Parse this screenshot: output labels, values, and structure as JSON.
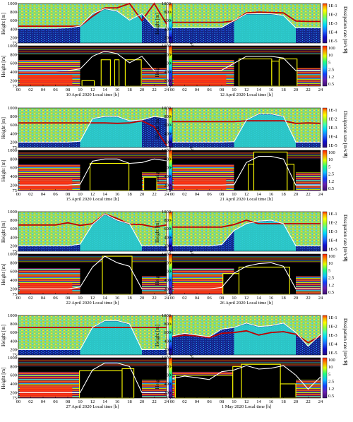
{
  "colors": {
    "diss_ramp": [
      "#2a0a7a",
      "#1010d0",
      "#1e6cff",
      "#00d5ff",
      "#40ffb0",
      "#9cff30",
      "#ffff00",
      "#ffb000",
      "#ff3000"
    ],
    "ri_ramp": [
      "#000000",
      "#3a1070",
      "#6a20b0",
      "#1040ff",
      "#10c0ff",
      "#20ff80",
      "#e0ff00",
      "#ff9000",
      "#ff2000"
    ],
    "mlh_line": "#ffffff",
    "sbl_line": "#c00000",
    "ri_box": "#ffff00"
  },
  "axis": {
    "y_label": "Height [m]",
    "diss_colorbar_label": "Dissipation rate [m²s⁻³]",
    "diss_ticks": [
      "1E-1",
      "1E-2",
      "1E-3",
      "1E-4",
      "1E-5"
    ],
    "ri_colorbar_label": "Ri",
    "ri_ticks": [
      "100",
      "10",
      "5",
      "2.5",
      "1.2",
      "0.5"
    ],
    "height_ticks": [
      "1000",
      "800",
      "600",
      "400",
      "200",
      "75"
    ],
    "hour_ticks": [
      "00",
      "02",
      "04",
      "06",
      "08",
      "10",
      "12",
      "14",
      "16",
      "18",
      "20",
      "22",
      "24"
    ]
  },
  "chart_data": [
    {
      "type": "heatmap",
      "caption": "10 April 2020 Local time [h]",
      "x": [
        0,
        2,
        4,
        6,
        8,
        10,
        12,
        14,
        16,
        18,
        20,
        22,
        24
      ],
      "mlh": [
        420,
        420,
        420,
        420,
        430,
        470,
        760,
        880,
        820,
        610,
        760,
        430,
        420
      ],
      "sbl": [
        470,
        470,
        470,
        470,
        470,
        470,
        700,
        900,
        900,
        1000,
        600,
        1000,
        520
      ],
      "ri_box": [
        [
          10.3,
          12.3,
          75,
          200
        ],
        [
          13.4,
          14.9,
          75,
          680
        ],
        [
          15.6,
          16.3,
          75,
          680
        ],
        [
          17.3,
          19.9,
          75,
          680
        ]
      ],
      "ylim": [
        75,
        1000
      ]
    },
    {
      "type": "heatmap",
      "caption": "12 April 2020 Local time [h]",
      "x": [
        0,
        2,
        4,
        6,
        8,
        10,
        12,
        14,
        16,
        18,
        20,
        22,
        24
      ],
      "mlh": [
        430,
        430,
        430,
        430,
        440,
        600,
        760,
        760,
        760,
        720,
        430,
        430,
        430
      ],
      "sbl": [
        560,
        560,
        560,
        560,
        560,
        590,
        780,
        800,
        790,
        780,
        590,
        580,
        580
      ],
      "ri_box": [
        [
          10.8,
          16.1,
          75,
          700
        ],
        [
          16.1,
          17.3,
          75,
          650
        ],
        [
          17.3,
          20.2,
          75,
          700
        ]
      ],
      "ylim": [
        75,
        1000
      ]
    },
    {
      "type": "heatmap",
      "caption": "15 April 2020 Local time [h]",
      "x": [
        0,
        2,
        4,
        6,
        8,
        10,
        12,
        14,
        16,
        18,
        20,
        22,
        24
      ],
      "mlh": [
        200,
        200,
        200,
        200,
        200,
        220,
        750,
        800,
        800,
        700,
        720,
        800,
        760
      ],
      "sbl": [
        650,
        650,
        650,
        650,
        650,
        650,
        650,
        650,
        640,
        650,
        700,
        560,
        120
      ],
      "ri_box": [
        [
          11.6,
          17.9,
          75,
          700
        ],
        [
          20.3,
          22.4,
          75,
          380
        ]
      ],
      "ylim": [
        75,
        1000
      ]
    },
    {
      "type": "heatmap",
      "caption": "21 April 2020 Local time [h]",
      "x": [
        0,
        2,
        4,
        6,
        8,
        10,
        12,
        14,
        16,
        18,
        20,
        22,
        24
      ],
      "mlh": [
        200,
        200,
        200,
        200,
        200,
        210,
        720,
        860,
        860,
        800,
        200,
        200,
        200
      ],
      "sbl": [
        680,
        680,
        680,
        680,
        680,
        680,
        700,
        700,
        700,
        700,
        640,
        650,
        640
      ],
      "ri_box": [
        [
          12.3,
          13.2,
          75,
          680
        ],
        [
          13.2,
          18.6,
          75,
          960
        ],
        [
          18.6,
          19.7,
          75,
          680
        ]
      ],
      "ylim": [
        75,
        1000
      ]
    },
    {
      "type": "heatmap",
      "caption": "22 April 2020 Local time [h]",
      "x": [
        0,
        2,
        4,
        6,
        8,
        10,
        12,
        14,
        16,
        18,
        20,
        22,
        24
      ],
      "mlh": [
        200,
        200,
        200,
        200,
        200,
        240,
        700,
        950,
        800,
        720,
        200,
        200,
        200
      ],
      "sbl": [
        690,
        690,
        690,
        690,
        740,
        680,
        720,
        950,
        840,
        710,
        700,
        640,
        690
      ],
      "ri_box": [
        [
          13.6,
          18.4,
          75,
          950
        ]
      ],
      "ylim": [
        75,
        1000
      ]
    },
    {
      "type": "heatmap",
      "caption": "26 April 2020 Local time [h]",
      "x": [
        0,
        2,
        4,
        6,
        8,
        10,
        12,
        14,
        16,
        18,
        20,
        22,
        24
      ],
      "mlh": [
        200,
        200,
        200,
        200,
        230,
        560,
        720,
        780,
        800,
        720,
        200,
        200,
        200
      ],
      "sbl": [
        640,
        640,
        640,
        640,
        640,
        700,
        800,
        720,
        720,
        720,
        720,
        720,
        720
      ],
      "ri_box": [
        [
          8.2,
          10.8,
          75,
          550
        ],
        [
          10.8,
          19.0,
          75,
          700
        ]
      ],
      "ylim": [
        75,
        1000
      ]
    },
    {
      "type": "heatmap",
      "caption": "27 April 2020 Local time [h]",
      "x": [
        0,
        2,
        4,
        6,
        8,
        10,
        12,
        14,
        16,
        18,
        20,
        22,
        24
      ],
      "mlh": [
        200,
        200,
        200,
        200,
        200,
        200,
        720,
        880,
        880,
        800,
        200,
        200,
        200
      ],
      "sbl": [
        720,
        720,
        720,
        720,
        720,
        720,
        720,
        720,
        720,
        720,
        720,
        720,
        720
      ],
      "ri_box": [
        [
          9.9,
          16.8,
          75,
          700
        ],
        [
          16.8,
          18.7,
          75,
          750
        ]
      ],
      "ylim": [
        75,
        1000
      ]
    },
    {
      "type": "heatmap",
      "caption": "1 May 2020 Local time [h]",
      "x": [
        0,
        2,
        4,
        6,
        8,
        10,
        12,
        14,
        16,
        18,
        20,
        22,
        24
      ],
      "mlh": [
        520,
        580,
        540,
        500,
        680,
        720,
        820,
        740,
        760,
        820,
        600,
        280,
        560
      ],
      "sbl": [
        500,
        540,
        520,
        480,
        580,
        600,
        640,
        540,
        600,
        620,
        560,
        360,
        520
      ],
      "ri_box": [
        [
          0.5,
          9.8,
          75,
          600
        ],
        [
          9.8,
          11.2,
          75,
          800
        ],
        [
          11.2,
          17.5,
          75,
          850
        ],
        [
          17.5,
          20.0,
          75,
          400
        ]
      ],
      "ylim": [
        75,
        1000
      ]
    }
  ]
}
